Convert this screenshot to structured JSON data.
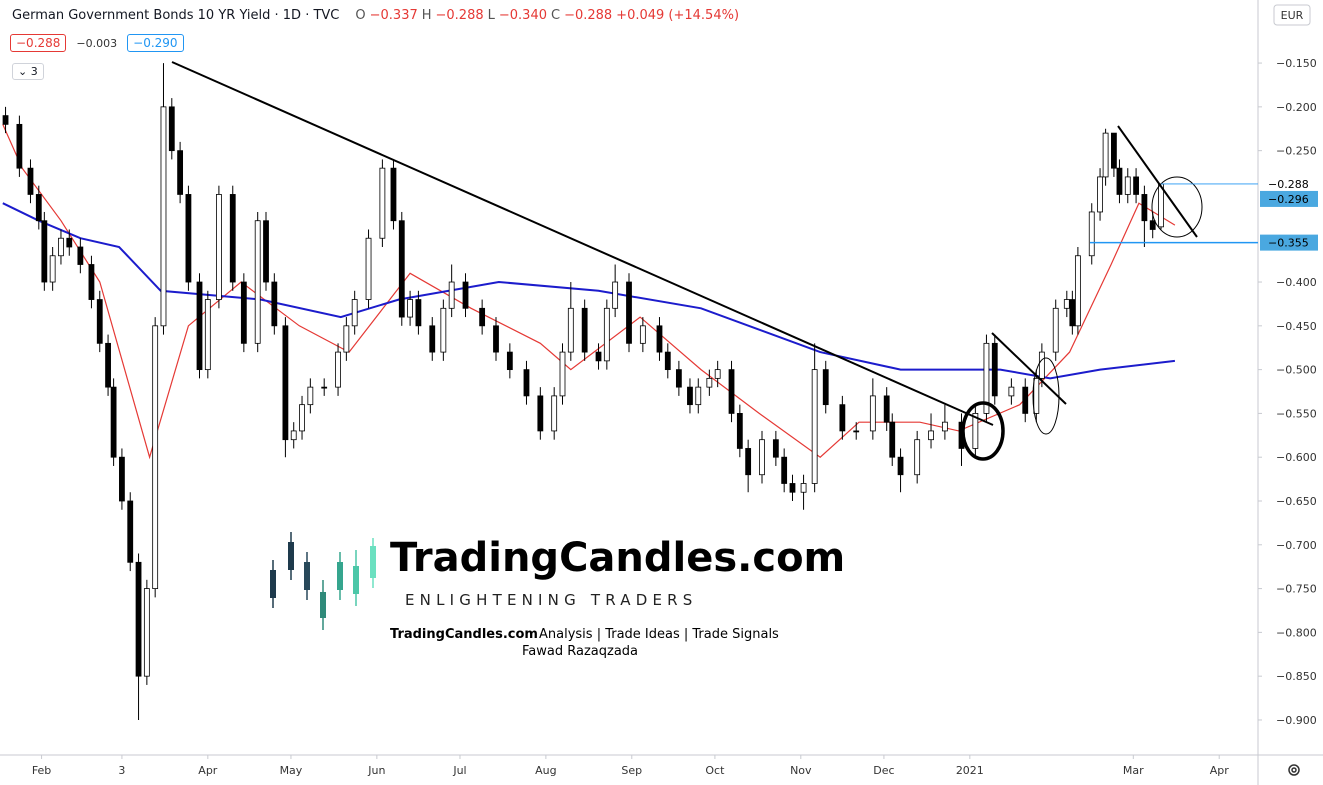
{
  "header": {
    "title": "German Government Bonds 10 YR Yield · 1D · TVC",
    "ohlc": [
      [
        "O",
        "−0.337"
      ],
      [
        "H",
        "−0.288"
      ],
      [
        "L",
        "−0.340"
      ],
      [
        "C",
        "−0.288"
      ]
    ],
    "change": "+0.049 (+14.54%)",
    "boxes": [
      "−0.288",
      "−0.003",
      "−0.290"
    ],
    "indicators": "3"
  },
  "watermark": {
    "brand": "TradingCandles.com",
    "tagline": "ENLIGHTENING TRADERS",
    "sub_brand": "TradingCandles.com",
    "sub_text": "Analysis | Trade Ideas | Trade Signals",
    "author": "Fawad Razaqzada"
  },
  "chart_data": {
    "type": "candlestick",
    "currency": "EUR",
    "up_color": "#ffffff",
    "down_color": "#000000",
    "xlim": [
      16,
      470
    ],
    "ylim": [
      -0.94,
      -0.078
    ],
    "xticks": [
      {
        "value": 31,
        "label": "Feb"
      },
      {
        "value": 60,
        "label": "3"
      },
      {
        "value": 91,
        "label": "Apr"
      },
      {
        "value": 121,
        "label": "May"
      },
      {
        "value": 152,
        "label": "Jun"
      },
      {
        "value": 182,
        "label": "Jul"
      },
      {
        "value": 213,
        "label": "Aug"
      },
      {
        "value": 244,
        "label": "Sep"
      },
      {
        "value": 274,
        "label": "Oct"
      },
      {
        "value": 305,
        "label": "Nov"
      },
      {
        "value": 335,
        "label": "Dec"
      },
      {
        "value": 366,
        "label": "2021"
      },
      {
        "value": 425,
        "label": "Mar"
      },
      {
        "value": 456,
        "label": "Apr"
      }
    ],
    "yticks": [
      {
        "value": -0.15,
        "label": "−0.150"
      },
      {
        "value": -0.2,
        "label": "−0.200"
      },
      {
        "value": -0.25,
        "label": "−0.250"
      },
      {
        "value": -0.4,
        "label": "−0.400"
      },
      {
        "value": -0.45,
        "label": "−0.450"
      },
      {
        "value": -0.5,
        "label": "−0.500"
      },
      {
        "value": -0.55,
        "label": "−0.550"
      },
      {
        "value": -0.6,
        "label": "−0.600"
      },
      {
        "value": -0.65,
        "label": "−0.650"
      },
      {
        "value": -0.7,
        "label": "−0.700"
      },
      {
        "value": -0.75,
        "label": "−0.750"
      },
      {
        "value": -0.8,
        "label": "−0.800"
      },
      {
        "value": -0.85,
        "label": "−0.850"
      },
      {
        "value": -0.9,
        "label": "−0.900"
      }
    ],
    "x": [
      18,
      23,
      27,
      30,
      32,
      35,
      38,
      41,
      45,
      49,
      52,
      55,
      57,
      60,
      63,
      66,
      69,
      72,
      75,
      78,
      81,
      84,
      88,
      91,
      95,
      100,
      104,
      109,
      112,
      115,
      119,
      122,
      125,
      128,
      133,
      138,
      141,
      144,
      149,
      154,
      158,
      161,
      164,
      167,
      172,
      176,
      179,
      184,
      190,
      195,
      200,
      206,
      211,
      216,
      219,
      222,
      227,
      232,
      235,
      238,
      243,
      248,
      254,
      257,
      261,
      265,
      268,
      272,
      275,
      280,
      283,
      286,
      291,
      296,
      299,
      302,
      306,
      310,
      314,
      320,
      325,
      331,
      336,
      338,
      341,
      347,
      352,
      357,
      363,
      368,
      372,
      375,
      381,
      386,
      390,
      392,
      397,
      401,
      403,
      405,
      410,
      413,
      415,
      418,
      420,
      423,
      426,
      429,
      432,
      435
    ],
    "open": [
      -0.21,
      -0.22,
      -0.27,
      -0.3,
      -0.33,
      -0.4,
      -0.37,
      -0.35,
      -0.36,
      -0.38,
      -0.42,
      -0.47,
      -0.52,
      -0.6,
      -0.65,
      -0.72,
      -0.85,
      -0.75,
      -0.45,
      -0.2,
      -0.25,
      -0.3,
      -0.4,
      -0.5,
      -0.42,
      -0.3,
      -0.4,
      -0.47,
      -0.33,
      -0.4,
      -0.45,
      -0.58,
      -0.57,
      -0.54,
      -0.52,
      -0.52,
      -0.48,
      -0.45,
      -0.42,
      -0.35,
      -0.27,
      -0.33,
      -0.44,
      -0.42,
      -0.45,
      -0.48,
      -0.43,
      -0.4,
      -0.43,
      -0.45,
      -0.48,
      -0.5,
      -0.53,
      -0.57,
      -0.53,
      -0.48,
      -0.43,
      -0.48,
      -0.49,
      -0.43,
      -0.4,
      -0.47,
      -0.45,
      -0.48,
      -0.5,
      -0.52,
      -0.54,
      -0.52,
      -0.51,
      -0.5,
      -0.55,
      -0.59,
      -0.62,
      -0.58,
      -0.6,
      -0.63,
      -0.64,
      -0.63,
      -0.5,
      -0.54,
      -0.57,
      -0.57,
      -0.53,
      -0.56,
      -0.6,
      -0.62,
      -0.58,
      -0.57,
      -0.56,
      -0.59,
      -0.55,
      -0.47,
      -0.53,
      -0.52,
      -0.55,
      -0.51,
      -0.48,
      -0.43,
      -0.42,
      -0.45,
      -0.37,
      -0.32,
      -0.28,
      -0.23,
      -0.27,
      -0.3,
      -0.28,
      -0.3,
      -0.33,
      -0.337
    ],
    "high": [
      -0.2,
      -0.21,
      -0.26,
      -0.29,
      -0.32,
      -0.36,
      -0.34,
      -0.34,
      -0.35,
      -0.37,
      -0.41,
      -0.46,
      -0.51,
      -0.59,
      -0.64,
      -0.71,
      -0.74,
      -0.44,
      -0.15,
      -0.19,
      -0.24,
      -0.29,
      -0.39,
      -0.41,
      -0.29,
      -0.29,
      -0.39,
      -0.32,
      -0.32,
      -0.39,
      -0.44,
      -0.56,
      -0.53,
      -0.51,
      -0.51,
      -0.47,
      -0.44,
      -0.41,
      -0.34,
      -0.26,
      -0.26,
      -0.32,
      -0.41,
      -0.41,
      -0.44,
      -0.42,
      -0.38,
      -0.39,
      -0.42,
      -0.44,
      -0.47,
      -0.49,
      -0.52,
      -0.52,
      -0.47,
      -0.4,
      -0.42,
      -0.47,
      -0.42,
      -0.38,
      -0.39,
      -0.44,
      -0.44,
      -0.47,
      -0.49,
      -0.51,
      -0.51,
      -0.5,
      -0.49,
      -0.49,
      -0.54,
      -0.58,
      -0.57,
      -0.57,
      -0.59,
      -0.62,
      -0.62,
      -0.47,
      -0.49,
      -0.53,
      -0.56,
      -0.51,
      -0.52,
      -0.55,
      -0.59,
      -0.57,
      -0.55,
      -0.54,
      -0.55,
      -0.54,
      -0.46,
      -0.46,
      -0.51,
      -0.51,
      -0.5,
      -0.47,
      -0.42,
      -0.41,
      -0.41,
      -0.36,
      -0.31,
      -0.27,
      -0.225,
      -0.23,
      -0.26,
      -0.27,
      -0.27,
      -0.29,
      -0.32,
      -0.288
    ],
    "low": [
      -0.23,
      -0.28,
      -0.31,
      -0.34,
      -0.41,
      -0.41,
      -0.38,
      -0.37,
      -0.39,
      -0.43,
      -0.48,
      -0.53,
      -0.61,
      -0.66,
      -0.73,
      -0.9,
      -0.86,
      -0.76,
      -0.46,
      -0.26,
      -0.31,
      -0.41,
      -0.51,
      -0.51,
      -0.43,
      -0.41,
      -0.48,
      -0.48,
      -0.41,
      -0.46,
      -0.6,
      -0.59,
      -0.58,
      -0.55,
      -0.53,
      -0.53,
      -0.49,
      -0.46,
      -0.43,
      -0.36,
      -0.34,
      -0.45,
      -0.45,
      -0.46,
      -0.49,
      -0.49,
      -0.44,
      -0.44,
      -0.46,
      -0.49,
      -0.51,
      -0.54,
      -0.58,
      -0.58,
      -0.54,
      -0.49,
      -0.49,
      -0.5,
      -0.5,
      -0.44,
      -0.48,
      -0.48,
      -0.49,
      -0.51,
      -0.53,
      -0.55,
      -0.55,
      -0.53,
      -0.52,
      -0.56,
      -0.6,
      -0.64,
      -0.63,
      -0.61,
      -0.64,
      -0.65,
      -0.66,
      -0.64,
      -0.55,
      -0.58,
      -0.58,
      -0.58,
      -0.57,
      -0.61,
      -0.64,
      -0.63,
      -0.59,
      -0.58,
      -0.61,
      -0.6,
      -0.56,
      -0.54,
      -0.54,
      -0.56,
      -0.56,
      -0.52,
      -0.49,
      -0.44,
      -0.46,
      -0.46,
      -0.38,
      -0.33,
      -0.29,
      -0.28,
      -0.31,
      -0.31,
      -0.31,
      -0.36,
      -0.35,
      -0.34
    ],
    "close": [
      -0.22,
      -0.27,
      -0.3,
      -0.33,
      -0.4,
      -0.37,
      -0.35,
      -0.36,
      -0.38,
      -0.42,
      -0.47,
      -0.52,
      -0.6,
      -0.65,
      -0.72,
      -0.85,
      -0.75,
      -0.45,
      -0.2,
      -0.25,
      -0.3,
      -0.4,
      -0.5,
      -0.42,
      -0.3,
      -0.4,
      -0.47,
      -0.33,
      -0.4,
      -0.45,
      -0.58,
      -0.57,
      -0.54,
      -0.52,
      -0.52,
      -0.48,
      -0.45,
      -0.42,
      -0.35,
      -0.27,
      -0.33,
      -0.44,
      -0.42,
      -0.45,
      -0.48,
      -0.43,
      -0.4,
      -0.43,
      -0.45,
      -0.48,
      -0.5,
      -0.53,
      -0.57,
      -0.53,
      -0.48,
      -0.43,
      -0.48,
      -0.49,
      -0.43,
      -0.4,
      -0.47,
      -0.45,
      -0.48,
      -0.5,
      -0.52,
      -0.54,
      -0.52,
      -0.51,
      -0.5,
      -0.55,
      -0.59,
      -0.62,
      -0.58,
      -0.6,
      -0.63,
      -0.64,
      -0.63,
      -0.5,
      -0.54,
      -0.57,
      -0.57,
      -0.53,
      -0.56,
      -0.6,
      -0.62,
      -0.58,
      -0.57,
      -0.56,
      -0.59,
      -0.55,
      -0.47,
      -0.53,
      -0.52,
      -0.55,
      -0.51,
      -0.48,
      -0.43,
      -0.42,
      -0.45,
      -0.37,
      -0.32,
      -0.28,
      -0.23,
      -0.27,
      -0.3,
      -0.28,
      -0.3,
      -0.33,
      -0.34,
      -0.288
    ],
    "moving_averages": [
      {
        "color": "#e53935",
        "x": [
          17,
          24,
          38,
          52,
          70,
          84,
          103,
          124,
          142,
          164,
          186,
          211,
          222,
          247,
          269,
          290,
          312,
          326,
          348,
          362,
          384,
          402,
          417,
          427,
          440
        ],
        "values": [
          -0.22,
          -0.27,
          -0.33,
          -0.4,
          -0.6,
          -0.45,
          -0.4,
          -0.45,
          -0.48,
          -0.39,
          -0.43,
          -0.47,
          -0.5,
          -0.44,
          -0.5,
          -0.55,
          -0.6,
          -0.56,
          -0.56,
          -0.57,
          -0.54,
          -0.48,
          -0.38,
          -0.31,
          -0.335
        ]
      },
      {
        "color": "#1c1ccc",
        "x": [
          17,
          30,
          45,
          59,
          74,
          110,
          139,
          160,
          196,
          232,
          269,
          312,
          341,
          377,
          395,
          413,
          440
        ],
        "values": [
          -0.31,
          -0.33,
          -0.35,
          -0.36,
          -0.41,
          -0.42,
          -0.44,
          -0.42,
          -0.4,
          -0.41,
          -0.43,
          -0.48,
          -0.5,
          -0.5,
          -0.51,
          -0.5,
          -0.49
        ]
      }
    ],
    "price_tags": [
      {
        "value": -0.288,
        "label": "−0.288"
      },
      {
        "value": -0.296,
        "label": "−0.296"
      },
      {
        "value": -0.355,
        "label": "−0.355"
      }
    ]
  }
}
